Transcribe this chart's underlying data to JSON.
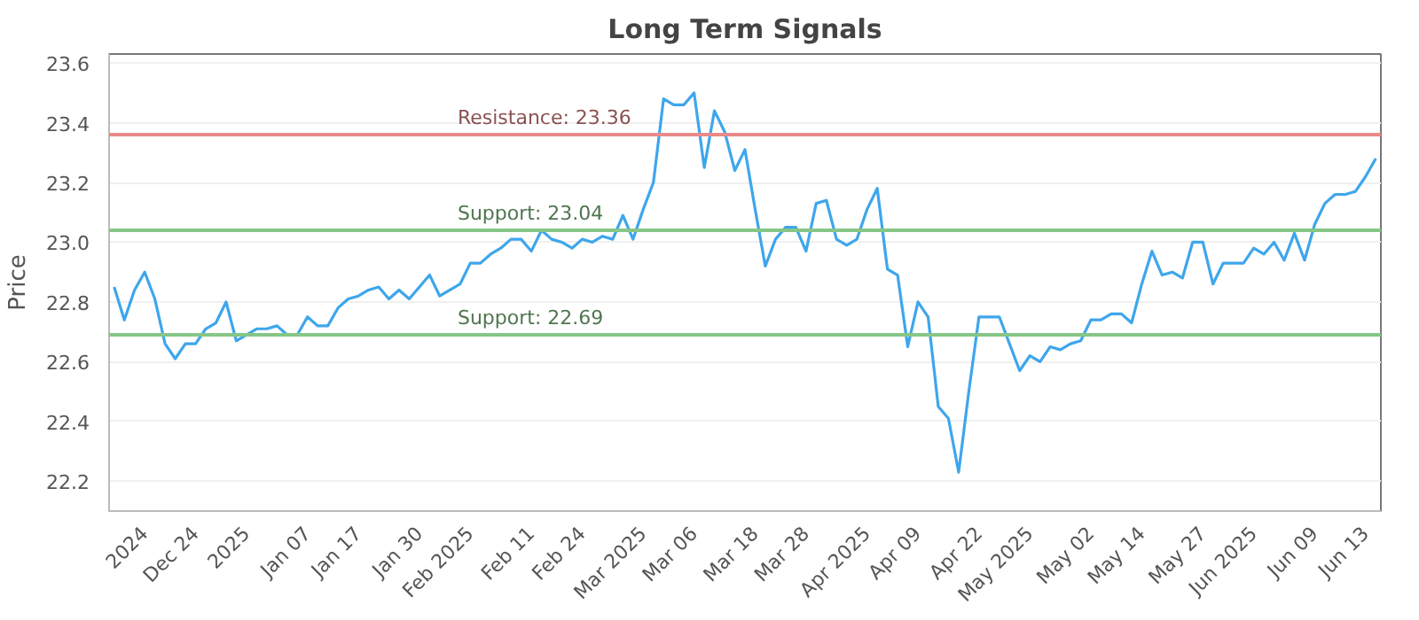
{
  "chart_data": {
    "type": "line",
    "title": "Long Term Signals",
    "ylabel": "Price",
    "categories": [
      null,
      null,
      null,
      "2024",
      null,
      null,
      null,
      null,
      "Dec 24",
      null,
      null,
      null,
      null,
      "2025",
      null,
      null,
      null,
      null,
      null,
      "Jan 07",
      null,
      null,
      null,
      null,
      "Jan 17",
      null,
      null,
      null,
      null,
      null,
      "Jan 30",
      null,
      null,
      null,
      null,
      "Feb 2025",
      null,
      null,
      null,
      null,
      null,
      "Feb 11",
      null,
      null,
      null,
      null,
      "Feb 24",
      null,
      null,
      null,
      null,
      null,
      "Mar 2025",
      null,
      null,
      null,
      null,
      "Mar 06",
      null,
      null,
      null,
      null,
      null,
      "Mar 18",
      null,
      null,
      null,
      null,
      "Mar 28",
      null,
      null,
      null,
      null,
      null,
      "Apr 2025",
      null,
      null,
      null,
      null,
      "Apr 09",
      null,
      null,
      null,
      null,
      null,
      "Apr 22",
      null,
      null,
      null,
      null,
      "May 2025",
      null,
      null,
      null,
      null,
      null,
      "May 02",
      null,
      null,
      null,
      null,
      "May 14",
      null,
      null,
      null,
      null,
      null,
      "May 27",
      null,
      null,
      null,
      null,
      "Jun 2025",
      null,
      null,
      null,
      null,
      null,
      "Jun 09",
      null,
      null,
      null,
      null,
      "Jun 13",
      null
    ],
    "series": [
      {
        "color": "#3ea6ec",
        "values": [
          22.85,
          22.74,
          22.84,
          22.9,
          22.81,
          22.66,
          22.61,
          22.66,
          22.66,
          22.71,
          22.73,
          22.8,
          22.67,
          22.69,
          22.71,
          22.71,
          22.72,
          22.69,
          22.69,
          22.75,
          22.72,
          22.72,
          22.78,
          22.81,
          22.82,
          22.84,
          22.85,
          22.81,
          22.84,
          22.81,
          22.85,
          22.89,
          22.82,
          22.84,
          22.86,
          22.93,
          22.93,
          22.96,
          22.98,
          23.01,
          23.01,
          22.97,
          23.04,
          23.01,
          23.0,
          22.98,
          23.01,
          23.0,
          23.02,
          23.01,
          23.09,
          23.01,
          23.11,
          23.2,
          23.48,
          23.46,
          23.46,
          23.5,
          23.25,
          23.44,
          23.37,
          23.24,
          23.31,
          23.11,
          22.92,
          23.01,
          23.05,
          23.05,
          22.97,
          23.13,
          23.14,
          23.01,
          22.99,
          23.01,
          23.11,
          23.18,
          22.91,
          22.89,
          22.65,
          22.8,
          22.75,
          22.45,
          22.41,
          22.23,
          22.5,
          22.75,
          22.75,
          22.75,
          22.66,
          22.57,
          22.62,
          22.6,
          22.65,
          22.64,
          22.66,
          22.67,
          22.74,
          22.74,
          22.76,
          22.76,
          22.73,
          22.86,
          22.97,
          22.89,
          22.9,
          22.88,
          23.0,
          23.0,
          22.86,
          22.93,
          22.93,
          22.93,
          22.98,
          22.96,
          23.0,
          22.94,
          23.03,
          22.94,
          23.06,
          23.13,
          23.16,
          23.16,
          23.17,
          23.22,
          23.28
        ]
      }
    ],
    "ylim": [
      22.1,
      23.63
    ],
    "yticks": [
      {
        "value": 22.2,
        "label": "22.2"
      },
      {
        "value": 22.4,
        "label": "22.4"
      },
      {
        "value": 22.6,
        "label": "22.6"
      },
      {
        "value": 22.8,
        "label": "22.8"
      },
      {
        "value": 23.0,
        "label": "23.0"
      },
      {
        "value": 23.2,
        "label": "23.2"
      },
      {
        "value": 23.4,
        "label": "23.4"
      },
      {
        "value": 23.6,
        "label": "23.6"
      }
    ],
    "ref_lines": [
      {
        "axis": "y",
        "value": 23.36,
        "label": "Resistance: 23.36",
        "color": "#e88a8a"
      },
      {
        "axis": "y",
        "value": 23.04,
        "label": "Support: 23.04",
        "color": "#86c686"
      },
      {
        "axis": "y",
        "value": 22.69,
        "label": "Support: 22.69",
        "color": "#86c686"
      }
    ],
    "grid": "y",
    "marker": "none",
    "line_style": "solid"
  }
}
